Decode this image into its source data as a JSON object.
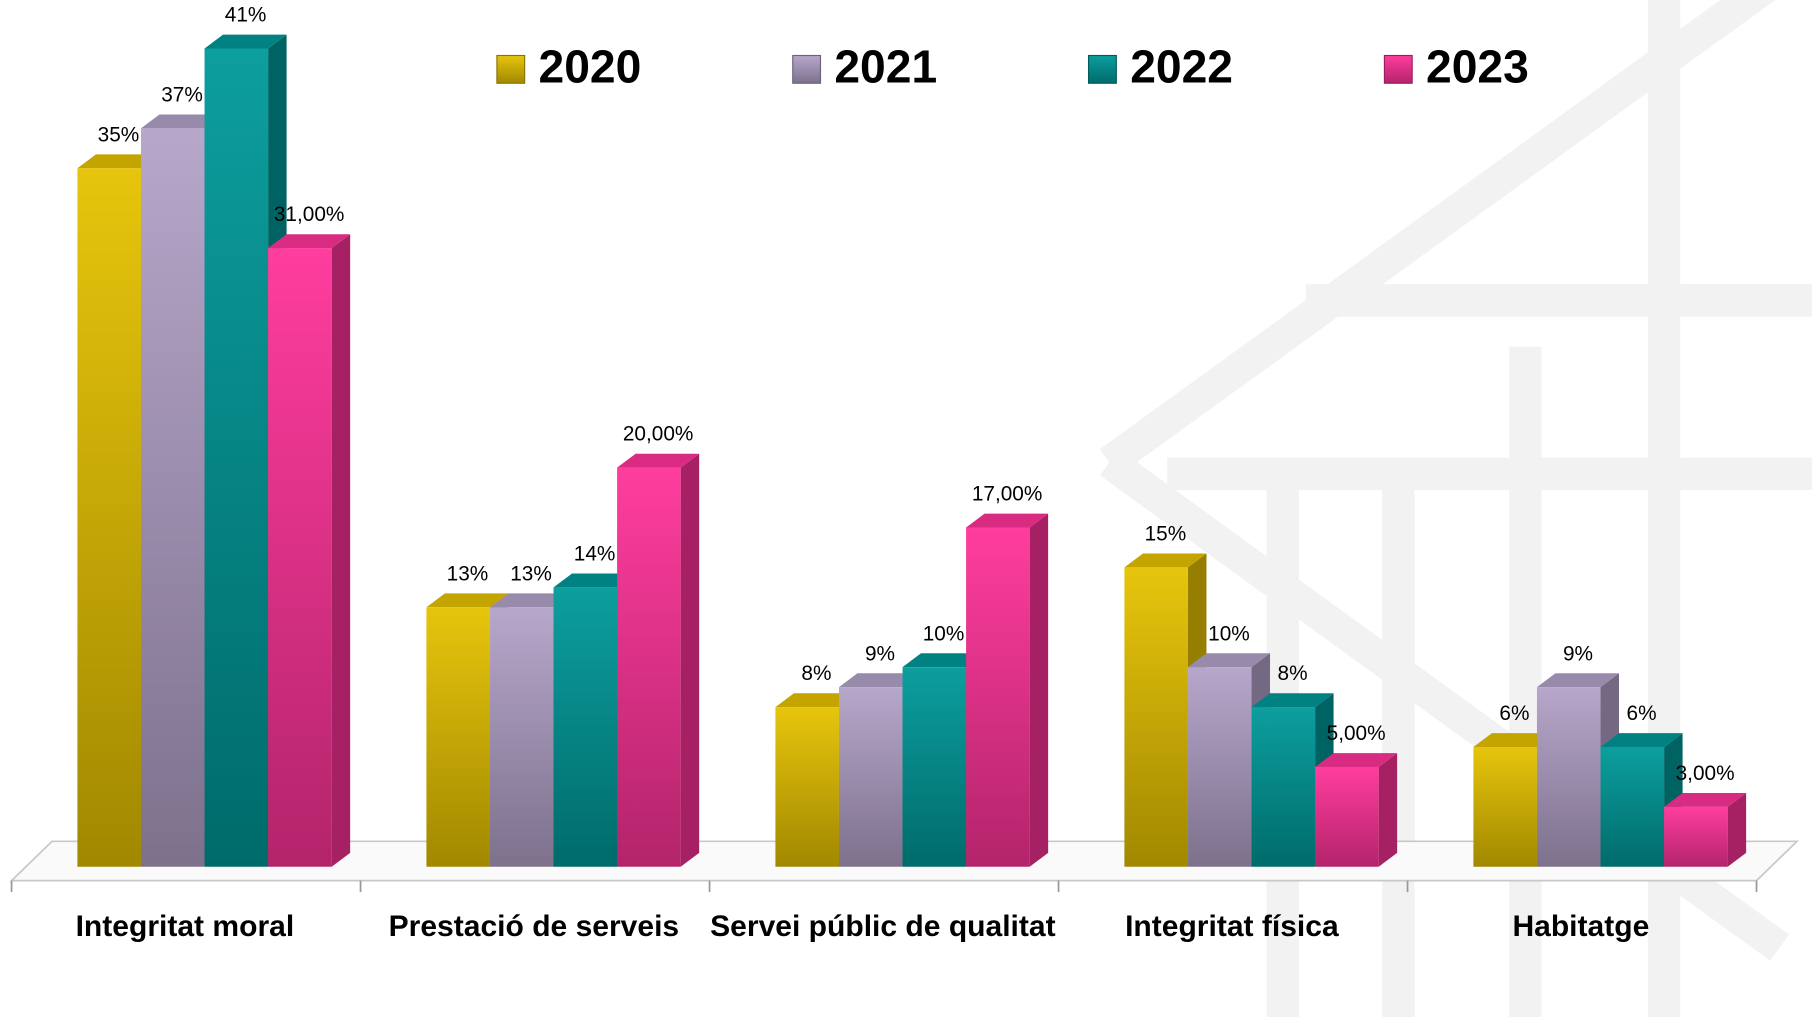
{
  "chart_data": {
    "type": "bar3d",
    "categories": [
      "Integritat moral",
      "Prestació de serveis",
      "Servei públic de qualitat",
      "Integritat física",
      "Habitatge"
    ],
    "series": [
      {
        "name": "2020",
        "color": "#e6c200",
        "values": [
          35,
          13,
          8,
          15,
          6
        ],
        "value_labels": [
          "35%",
          "13%",
          "8%",
          "15%",
          "6%"
        ]
      },
      {
        "name": "2021",
        "color": "#b3a2c8",
        "values": [
          37,
          13,
          9,
          10,
          9
        ],
        "value_labels": [
          "37%",
          "13%",
          "9%",
          "10%",
          "9%"
        ]
      },
      {
        "name": "2022",
        "color": "#009999",
        "values": [
          41,
          14,
          10,
          8,
          6
        ],
        "value_labels": [
          "41%",
          "14%",
          "10%",
          "8%",
          "6%"
        ]
      },
      {
        "name": "2023",
        "color": "#ff3399",
        "values": [
          31,
          20,
          17,
          5,
          3
        ],
        "value_labels": [
          "31,00%",
          "20,00%",
          "17,00%",
          "5,00%",
          "3,00%"
        ]
      }
    ],
    "legend": "top"
  }
}
